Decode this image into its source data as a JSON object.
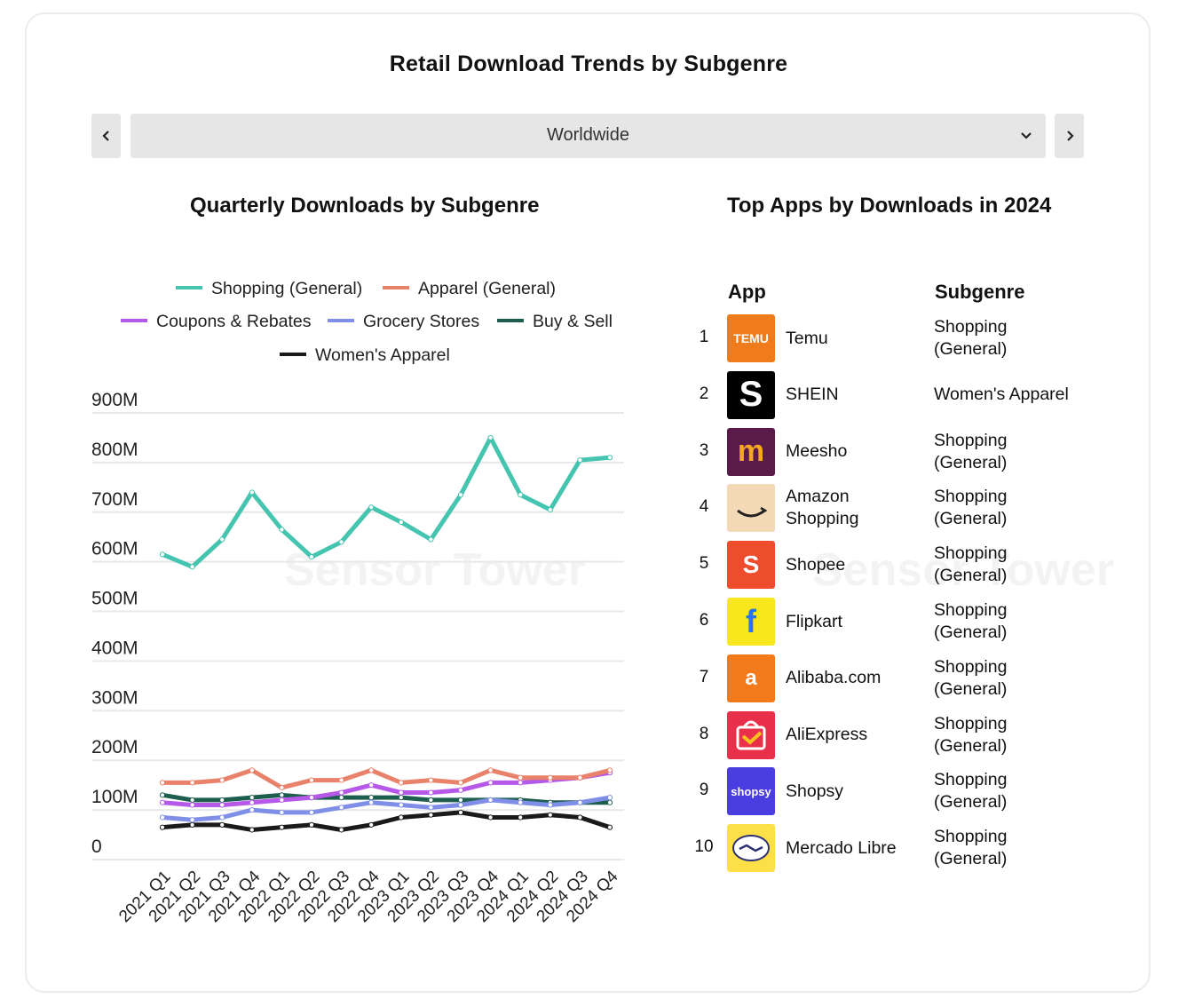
{
  "title": "Retail Download Trends by Subgenre",
  "region": {
    "selected": "Worldwide"
  },
  "left_title": "Quarterly Downloads by Subgenre",
  "right_title": "Top Apps by Downloads in 2024",
  "watermark": "Sensor Tower",
  "colors": {
    "Shopping (General)": "#45c4b0",
    "Apparel (General)": "#e8826a",
    "Coupons & Rebates": "#b658e8",
    "Grocery Stores": "#7f8fe8",
    "Buy & Sell": "#1e5e4e",
    "Women's Apparel": "#1a1a1a"
  },
  "chart_data": {
    "type": "line",
    "title": "Quarterly Downloads by Subgenre",
    "x": [
      "2021 Q1",
      "2021 Q2",
      "2021 Q3",
      "2021 Q4",
      "2022 Q1",
      "2022 Q2",
      "2022 Q3",
      "2022 Q4",
      "2023 Q1",
      "2023 Q2",
      "2023 Q3",
      "2023 Q4",
      "2024 Q1",
      "2024 Q2",
      "2024 Q3",
      "2024 Q4"
    ],
    "y_ticks": [
      "900M",
      "800M",
      "700M",
      "600M",
      "500M",
      "400M",
      "300M",
      "200M",
      "100M",
      "0"
    ],
    "ylim": [
      0,
      900
    ],
    "legend_position": "top",
    "series": [
      {
        "name": "Shopping (General)",
        "values": [
          615,
          590,
          645,
          740,
          665,
          610,
          640,
          710,
          680,
          645,
          735,
          850,
          735,
          705,
          805,
          810
        ]
      },
      {
        "name": "Apparel (General)",
        "values": [
          155,
          155,
          160,
          180,
          145,
          160,
          160,
          180,
          155,
          160,
          155,
          180,
          165,
          165,
          165,
          180
        ]
      },
      {
        "name": "Coupons & Rebates",
        "values": [
          115,
          110,
          110,
          115,
          120,
          125,
          135,
          150,
          135,
          135,
          140,
          155,
          155,
          160,
          165,
          175
        ]
      },
      {
        "name": "Grocery Stores",
        "values": [
          85,
          80,
          85,
          100,
          95,
          95,
          105,
          115,
          110,
          105,
          110,
          120,
          115,
          110,
          115,
          125
        ]
      },
      {
        "name": "Buy & Sell",
        "values": [
          130,
          120,
          120,
          125,
          130,
          125,
          125,
          125,
          125,
          120,
          120,
          120,
          120,
          115,
          115,
          115
        ]
      },
      {
        "name": "Women's Apparel",
        "values": [
          65,
          70,
          70,
          60,
          65,
          70,
          60,
          70,
          85,
          90,
          95,
          85,
          85,
          90,
          85,
          65
        ]
      }
    ]
  },
  "table": {
    "col_app": "App",
    "col_subgenre": "Subgenre",
    "rows": [
      {
        "rank": "1",
        "name": "Temu",
        "subgenre": "Shopping\n(General)",
        "icon": "temu-icon",
        "icon_text": "TEMU",
        "color": "#f07b1a"
      },
      {
        "rank": "2",
        "name": "SHEIN",
        "subgenre": "Women's Apparel",
        "icon": "shein-icon",
        "icon_text": "S",
        "color": "#000000"
      },
      {
        "rank": "3",
        "name": "Meesho",
        "subgenre": "Shopping\n(General)",
        "icon": "meesho-icon",
        "icon_text": "m",
        "color": "#5a1a4a"
      },
      {
        "rank": "4",
        "name": "Amazon\nShopping",
        "subgenre": "Shopping\n(General)",
        "icon": "amazon-icon",
        "icon_text": "",
        "color": "#f3d9b5"
      },
      {
        "rank": "5",
        "name": "Shopee",
        "subgenre": "Shopping\n(General)",
        "icon": "shopee-icon",
        "icon_text": "S",
        "color": "#ee4d2d"
      },
      {
        "rank": "6",
        "name": "Flipkart",
        "subgenre": "Shopping\n(General)",
        "icon": "flipkart-icon",
        "icon_text": "f",
        "color": "#f8e71c"
      },
      {
        "rank": "7",
        "name": "Alibaba.com",
        "subgenre": "Shopping\n(General)",
        "icon": "alibaba-icon",
        "icon_text": "a",
        "color": "#f27a1a"
      },
      {
        "rank": "8",
        "name": "AliExpress",
        "subgenre": "Shopping\n(General)",
        "icon": "aliexpress-icon",
        "icon_text": "",
        "color": "#e8304a"
      },
      {
        "rank": "9",
        "name": "Shopsy",
        "subgenre": "Shopping\n(General)",
        "icon": "shopsy-icon",
        "icon_text": "shopsy",
        "color": "#4b3ee0"
      },
      {
        "rank": "10",
        "name": "Mercado Libre",
        "subgenre": "Shopping\n(General)",
        "icon": "mercadolibre-icon",
        "icon_text": "",
        "color": "#fde047"
      }
    ]
  }
}
